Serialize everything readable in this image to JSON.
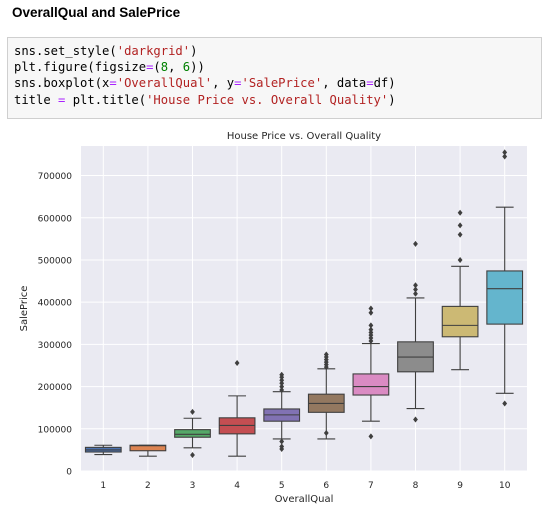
{
  "heading": "OverallQual and SalePrice",
  "code": {
    "line1": {
      "a": "sns.set_style(",
      "b": "'darkgrid'",
      "c": ")"
    },
    "line2": {
      "a": "plt.figure(figsize",
      "eq": "=",
      "b": "(",
      "n1": "8",
      "c": ", ",
      "n2": "6",
      "d": "))"
    },
    "line3": {
      "a": "sns.boxplot(x",
      "eq1": "=",
      "s1": "'OverallQual'",
      "b": ", y",
      "eq2": "=",
      "s2": "'SalePrice'",
      "c": ", data",
      "eq3": "=",
      "d": "df)"
    },
    "line4": {
      "a": "title ",
      "eq": "=",
      "b": " plt.title(",
      "s": "'House Price vs. Overall Quality'",
      "c": ")"
    }
  },
  "chart_data": {
    "type": "box",
    "title": "House Price vs. Overall Quality",
    "xlabel": "OverallQual",
    "ylabel": "SalePrice",
    "ylim": [
      0,
      770000
    ],
    "yticks": [
      0,
      100000,
      200000,
      300000,
      400000,
      500000,
      600000,
      700000
    ],
    "ytick_labels": [
      "0",
      "100000",
      "200000",
      "300000",
      "400000",
      "500000",
      "600000",
      "700000"
    ],
    "grid": true,
    "style": "darkgrid",
    "categories": [
      "1",
      "2",
      "3",
      "4",
      "5",
      "6",
      "7",
      "8",
      "9",
      "10"
    ],
    "boxes": [
      {
        "label": "1",
        "color": "#4c72b0",
        "whislo": 39000,
        "q1": 45000,
        "med": 50000,
        "q3": 56000,
        "whishi": 61000,
        "fliers": []
      },
      {
        "label": "2",
        "color": "#dd8452",
        "whislo": 35000,
        "q1": 48000,
        "med": 60000,
        "q3": 61000,
        "whishi": 61000,
        "fliers": []
      },
      {
        "label": "3",
        "color": "#55a868",
        "whislo": 55000,
        "q1": 80000,
        "med": 87000,
        "q3": 98000,
        "whishi": 125000,
        "fliers": [
          140000,
          38000
        ]
      },
      {
        "label": "4",
        "color": "#c44e52",
        "whislo": 35000,
        "q1": 88000,
        "med": 108000,
        "q3": 126000,
        "whishi": 178000,
        "fliers": [
          256000
        ]
      },
      {
        "label": "5",
        "color": "#8172b3",
        "whislo": 76000,
        "q1": 118000,
        "med": 133000,
        "q3": 147000,
        "whishi": 188000,
        "fliers": [
          228000,
          222000,
          215000,
          208000,
          200000,
          192000,
          70000,
          58000,
          52000
        ]
      },
      {
        "label": "6",
        "color": "#937860",
        "whislo": 76000,
        "q1": 139000,
        "med": 160000,
        "q3": 182000,
        "whishi": 242000,
        "fliers": [
          276000,
          270000,
          264000,
          258000,
          252000,
          246000,
          90000
        ]
      },
      {
        "label": "7",
        "color": "#da8bc3",
        "whislo": 118000,
        "q1": 180000,
        "med": 200000,
        "q3": 230000,
        "whishi": 302000,
        "fliers": [
          385000,
          375000,
          345000,
          335000,
          328000,
          322000,
          315000,
          308000,
          82000
        ]
      },
      {
        "label": "8",
        "color": "#8c8c8c",
        "whislo": 148000,
        "q1": 235000,
        "med": 270000,
        "q3": 306000,
        "whishi": 410000,
        "fliers": [
          538000,
          440000,
          430000,
          420000,
          122000
        ]
      },
      {
        "label": "9",
        "color": "#ccb974",
        "whislo": 240000,
        "q1": 318000,
        "med": 345000,
        "q3": 390000,
        "whishi": 485000,
        "fliers": [
          612000,
          582000,
          560000,
          500000
        ]
      },
      {
        "label": "10",
        "color": "#64b5cd",
        "whislo": 184000,
        "q1": 348000,
        "med": 432000,
        "q3": 474000,
        "whishi": 625000,
        "fliers": [
          755000,
          745000,
          160000
        ]
      }
    ]
  }
}
